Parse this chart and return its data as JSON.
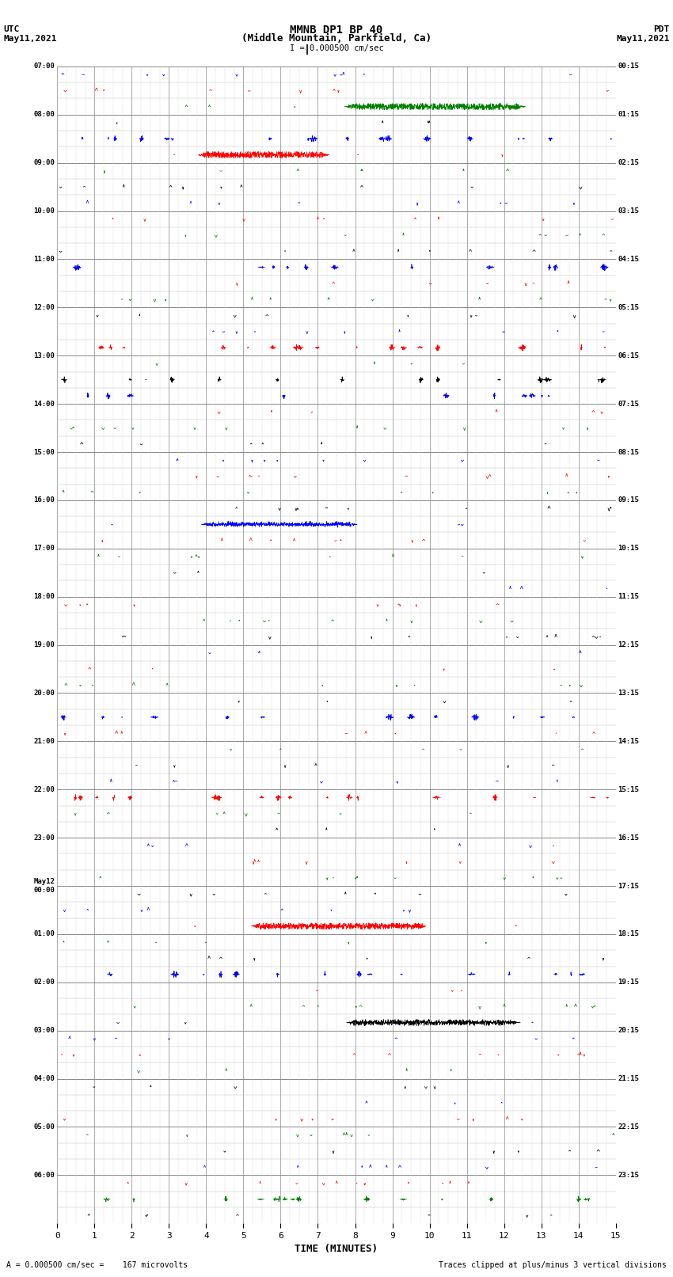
{
  "title_line1": "MMNB DP1 BP 40",
  "title_line2": "(Middle Mountain, Parkfield, Ca)",
  "scale_text": "I = 0.000500 cm/sec",
  "left_label_top": "UTC",
  "left_label_bot": "May11,2021",
  "right_label_top": "PDT",
  "right_label_bot": "May11,2021",
  "bottom_label": "TIME (MINUTES)",
  "footer_left": "= 0.000500 cm/sec =    167 microvolts",
  "footer_right": "Traces clipped at plus/minus 3 vertical divisions",
  "utc_times": [
    "07:00",
    "",
    "",
    "08:00",
    "",
    "",
    "09:00",
    "",
    "",
    "10:00",
    "",
    "",
    "11:00",
    "",
    "",
    "12:00",
    "",
    "",
    "13:00",
    "",
    "",
    "14:00",
    "",
    "",
    "15:00",
    "",
    "",
    "16:00",
    "",
    "",
    "17:00",
    "",
    "",
    "18:00",
    "",
    "",
    "19:00",
    "",
    "",
    "20:00",
    "",
    "",
    "21:00",
    "",
    "",
    "22:00",
    "",
    "",
    "23:00",
    "",
    "",
    "May12\n00:00",
    "",
    "",
    "01:00",
    "",
    "",
    "02:00",
    "",
    "",
    "03:00",
    "",
    "",
    "04:00",
    "",
    "",
    "05:00",
    "",
    "",
    "06:00",
    "",
    ""
  ],
  "pdt_times": [
    "00:15",
    "",
    "",
    "01:15",
    "",
    "",
    "02:15",
    "",
    "",
    "03:15",
    "",
    "",
    "04:15",
    "",
    "",
    "05:15",
    "",
    "",
    "06:15",
    "",
    "",
    "07:15",
    "",
    "",
    "08:15",
    "",
    "",
    "09:15",
    "",
    "",
    "10:15",
    "",
    "",
    "11:15",
    "",
    "",
    "12:15",
    "",
    "",
    "13:15",
    "",
    "",
    "14:15",
    "",
    "",
    "15:15",
    "",
    "",
    "16:15",
    "",
    "",
    "17:15",
    "",
    "",
    "18:15",
    "",
    "",
    "19:15",
    "",
    "",
    "20:15",
    "",
    "",
    "21:15",
    "",
    "",
    "22:15",
    "",
    "",
    "23:15",
    "",
    ""
  ],
  "n_rows": 72,
  "n_cols": 15,
  "bg_color": "#ffffff",
  "grid_color": "#999999",
  "trace_colors": [
    "#0000ff",
    "#ff0000",
    "#008000",
    "#000000"
  ],
  "x_min": 0,
  "x_max": 15,
  "x_ticks": [
    0,
    1,
    2,
    3,
    4,
    5,
    6,
    7,
    8,
    9,
    10,
    11,
    12,
    13,
    14,
    15
  ]
}
